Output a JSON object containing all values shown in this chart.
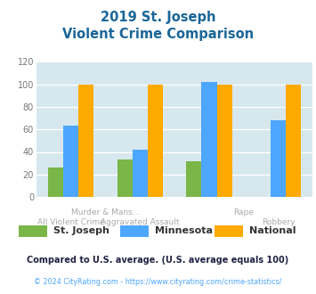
{
  "title_line1": "2019 St. Joseph",
  "title_line2": "Violent Crime Comparison",
  "cat_labels_top": [
    "",
    "Murder & Mans...",
    "",
    "Rape",
    "",
    "Robbery"
  ],
  "cat_labels_bot": [
    "All Violent Crime",
    "Aggravated Assault",
    "",
    "",
    "",
    ""
  ],
  "groups": [
    "All Violent Crime",
    "Murder/Aggravated",
    "Rape",
    "Robbery"
  ],
  "st_joseph": [
    26,
    33,
    32,
    0
  ],
  "minnesota": [
    63,
    42,
    102,
    68
  ],
  "national": [
    100,
    100,
    100,
    100
  ],
  "color_st_joseph": "#7ab648",
  "color_minnesota": "#4da6ff",
  "color_national": "#ffaa00",
  "ylim": [
    0,
    120
  ],
  "yticks": [
    0,
    20,
    40,
    60,
    80,
    100,
    120
  ],
  "bg_color": "#d6e8ee",
  "title_color": "#1a6699",
  "legend_label_color": "#333333",
  "footnote1": "Compared to U.S. average. (U.S. average equals 100)",
  "footnote2": "© 2024 CityRating.com - https://www.cityrating.com/crime-statistics/",
  "footnote1_color": "#222244",
  "footnote2_color": "#4da6ff"
}
